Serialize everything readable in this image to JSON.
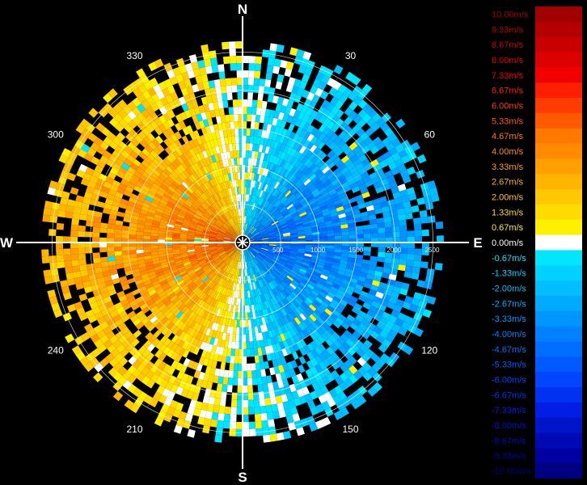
{
  "chart_data": {
    "type": "polar-heatmap",
    "title": "",
    "compass": [
      "N",
      "E",
      "S",
      "W"
    ],
    "azimuth_labels": [
      "30",
      "60",
      "120",
      "150",
      "210",
      "240",
      "300",
      "330"
    ],
    "range_labels": [
      "500",
      "1000",
      "1500",
      "2000",
      "2500"
    ],
    "range_max": 2500,
    "velocity_field": {
      "description_units": "m/s",
      "west_half_mean": 3.3,
      "east_half_mean": -3.5,
      "near_center_magnitude": 5.3,
      "edge_magnitude": 2.0
    },
    "colorbar": [
      {
        "label": "10.00m/s",
        "value": 10.0,
        "color": "#a00000"
      },
      {
        "label": "9.33m/s",
        "value": 9.33,
        "color": "#b40000"
      },
      {
        "label": "8.67m/s",
        "value": 8.67,
        "color": "#c80000"
      },
      {
        "label": "8.00m/s",
        "value": 8.0,
        "color": "#dc0000"
      },
      {
        "label": "7.33m/s",
        "value": 7.33,
        "color": "#f00000"
      },
      {
        "label": "6.67m/s",
        "value": 6.67,
        "color": "#ff1e00"
      },
      {
        "label": "6.00m/s",
        "value": 6.0,
        "color": "#ff3c00"
      },
      {
        "label": "5.33m/s",
        "value": 5.33,
        "color": "#ff5a00"
      },
      {
        "label": "4.67m/s",
        "value": 4.67,
        "color": "#ff7800"
      },
      {
        "label": "4.00m/s",
        "value": 4.0,
        "color": "#ff8c00"
      },
      {
        "label": "3.33m/s",
        "value": 3.33,
        "color": "#ffa000"
      },
      {
        "label": "2.67m/s",
        "value": 2.67,
        "color": "#ffb400"
      },
      {
        "label": "2.00m/s",
        "value": 2.0,
        "color": "#ffc800"
      },
      {
        "label": "1.33m/s",
        "value": 1.33,
        "color": "#ffdc00"
      },
      {
        "label": "0.67m/s",
        "value": 0.67,
        "color": "#fff000"
      },
      {
        "label": "0.00m/s",
        "value": 0.0,
        "color": "#ffffff"
      },
      {
        "label": "-0.67m/s",
        "value": -0.67,
        "color": "#00e6ff"
      },
      {
        "label": "-1.33m/s",
        "value": -1.33,
        "color": "#00d2ff"
      },
      {
        "label": "-2.00m/s",
        "value": -2.0,
        "color": "#00beff"
      },
      {
        "label": "-2.67m/s",
        "value": -2.67,
        "color": "#00aaff"
      },
      {
        "label": "-3.33m/s",
        "value": -3.33,
        "color": "#0096ff"
      },
      {
        "label": "-4.00m/s",
        "value": -4.0,
        "color": "#0082ff"
      },
      {
        "label": "-4.67m/s",
        "value": -4.67,
        "color": "#006eff"
      },
      {
        "label": "-5.33m/s",
        "value": -5.33,
        "color": "#005aff"
      },
      {
        "label": "-6.00m/s",
        "value": -6.0,
        "color": "#0046ff"
      },
      {
        "label": "-6.67m/s",
        "value": -6.67,
        "color": "#0032f0"
      },
      {
        "label": "-7.33m/s",
        "value": -7.33,
        "color": "#001ee6"
      },
      {
        "label": "-8.00m/s",
        "value": -8.0,
        "color": "#0014c8"
      },
      {
        "label": "-8.67m/s",
        "value": -8.67,
        "color": "#000ab4"
      },
      {
        "label": "-9.33m/s",
        "value": -9.33,
        "color": "#0000a0"
      },
      {
        "label": "-10.00m/s",
        "value": -10.0,
        "color": "#000082"
      }
    ]
  }
}
